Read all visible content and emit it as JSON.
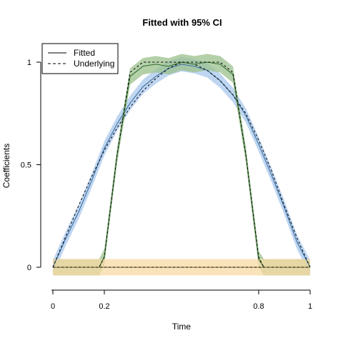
{
  "chart_data": {
    "type": "line",
    "title": "Fitted with 95% CI",
    "xlabel": "Time",
    "ylabel": "Coefficients",
    "xlim": [
      0,
      1
    ],
    "ylim": [
      -0.1,
      1.1
    ],
    "xticks": [
      0,
      0.2,
      0.8,
      1
    ],
    "xtick_labels": [
      "0",
      "0.2",
      "0.8",
      "1"
    ],
    "yticks": [
      0,
      0.5,
      1
    ],
    "ytick_labels": [
      "0",
      "0.5",
      "1"
    ],
    "legend": {
      "position": "top-left",
      "entries": [
        {
          "label": "Fitted",
          "style": "solid"
        },
        {
          "label": "Underlying",
          "style": "dashed"
        }
      ]
    },
    "series": [
      {
        "color": "#3c6f9e",
        "band_color": "#a9c8ee",
        "x": [
          0,
          0.05,
          0.1,
          0.15,
          0.2,
          0.25,
          0.3,
          0.35,
          0.4,
          0.45,
          0.5,
          0.55,
          0.6,
          0.65,
          0.7,
          0.75,
          0.8,
          0.85,
          0.9,
          0.95,
          1
        ],
        "fitted": [
          0.0,
          0.14,
          0.27,
          0.42,
          0.58,
          0.7,
          0.8,
          0.88,
          0.93,
          0.97,
          0.99,
          0.98,
          0.96,
          0.91,
          0.84,
          0.74,
          0.6,
          0.45,
          0.29,
          0.12,
          0.0
        ],
        "underlying": [
          0.0,
          0.15,
          0.3,
          0.44,
          0.57,
          0.68,
          0.78,
          0.86,
          0.92,
          0.97,
          1.0,
          0.99,
          0.96,
          0.91,
          0.84,
          0.75,
          0.62,
          0.47,
          0.3,
          0.14,
          0.0
        ],
        "ci_halfwidth": 0.035
      },
      {
        "color": "#2f6b2f",
        "band_color": "#9bc08c",
        "x": [
          0,
          0.1,
          0.18,
          0.2,
          0.25,
          0.3,
          0.35,
          0.4,
          0.45,
          0.5,
          0.55,
          0.6,
          0.65,
          0.7,
          0.75,
          0.8,
          0.82,
          0.9,
          1
        ],
        "fitted": [
          0.0,
          0.0,
          0.0,
          0.05,
          0.55,
          0.93,
          0.98,
          0.99,
          0.98,
          1.0,
          0.99,
          1.0,
          0.99,
          0.94,
          0.55,
          0.04,
          0.0,
          0.0,
          0.0
        ],
        "underlying": [
          0.0,
          0.0,
          0.0,
          0.05,
          0.55,
          0.95,
          1.0,
          1.0,
          1.0,
          1.0,
          1.0,
          1.0,
          1.0,
          0.95,
          0.55,
          0.05,
          0.0,
          0.0,
          0.0
        ],
        "ci_halfwidth": 0.04
      },
      {
        "color": "#7a6a3a",
        "band_color": "#f7d9a3",
        "x": [
          0,
          0.25,
          0.5,
          0.75,
          1
        ],
        "fitted": [
          0.0,
          0.0,
          0.0,
          0.0,
          0.0
        ],
        "underlying": [
          0.0,
          0.0,
          0.0,
          0.0,
          0.0
        ],
        "ci_halfwidth": 0.04
      }
    ]
  }
}
